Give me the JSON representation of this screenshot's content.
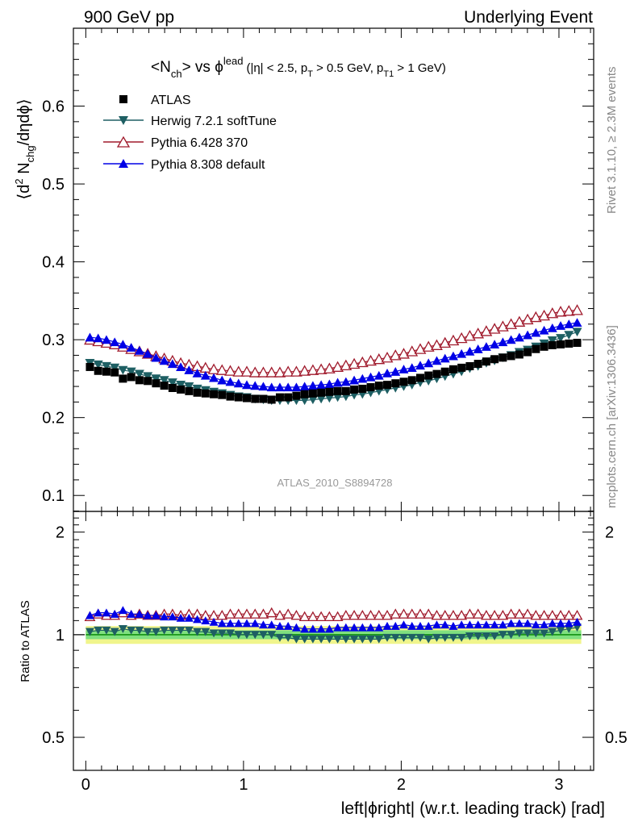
{
  "header": {
    "left": "900 GeV pp",
    "right": "Underlying Event"
  },
  "plot_title": {
    "prefix": "<N",
    "prefix_sub": "ch",
    "mid": "> vs ",
    "phi": "ϕ",
    "phi_sup": "lead",
    "cuts_a": "(|η| < 2.5, p",
    "cuts_a_sub": "T",
    "cuts_b": " > 0.5 GeV, p",
    "cuts_b_sub": "T1",
    "cuts_c": " > 1 GeV)"
  },
  "y_label_top": {
    "a": "⟨d",
    "sup": "2",
    "b": " N",
    "sub": "chg",
    "c": "/dηdϕ⟩"
  },
  "y_label_bottom": "Ratio to ATLAS",
  "x_label": "left|ϕright| (w.r.t. leading track) [rad]",
  "side_text_top": "Rivet 3.1.10, ≥ 2.3M events",
  "side_text_bottom": "mcplots.cern.ch [arXiv:1306.3436]",
  "watermark": "ATLAS_2010_S8894728",
  "colors": {
    "atlas": "#000000",
    "herwig": "#1e5f63",
    "pythia6": "#a01a2c",
    "pythia8": "#0000e6",
    "band_outer": "#f0f58c",
    "band_inner": "#7fe07f",
    "ref_line": "#0a8c0a"
  },
  "chart_data": [
    {
      "type": "scatter",
      "xlim": [
        -0.0785,
        3.2201
      ],
      "ylim": [
        0.0795,
        0.7
      ],
      "x_ticks": [
        "0",
        "1",
        "2",
        "3"
      ],
      "y_ticks": [
        "0.1",
        "0.2",
        "0.3",
        "0.4",
        "0.5",
        "0.6"
      ],
      "legend_position": "top-left",
      "x": [
        0.0262,
        0.0785,
        0.1309,
        0.1833,
        0.2356,
        0.288,
        0.3403,
        0.3927,
        0.4451,
        0.4974,
        0.5498,
        0.6021,
        0.6545,
        0.7069,
        0.7592,
        0.8116,
        0.8639,
        0.9163,
        0.9687,
        1.021,
        1.0734,
        1.1257,
        1.1781,
        1.2305,
        1.2828,
        1.3352,
        1.3875,
        1.4399,
        1.4923,
        1.5446,
        1.597,
        1.6493,
        1.7017,
        1.7541,
        1.8064,
        1.8588,
        1.9111,
        1.9635,
        2.0159,
        2.0682,
        2.1206,
        2.1729,
        2.2253,
        2.2777,
        2.33,
        2.3824,
        2.4347,
        2.4871,
        2.5395,
        2.5918,
        2.6442,
        2.6965,
        2.7489,
        2.8013,
        2.8536,
        2.906,
        2.9583,
        3.0107,
        3.0631,
        3.1154
      ],
      "series": [
        {
          "name": "ATLAS",
          "marker": "square",
          "values": [
            0.265,
            0.26,
            0.259,
            0.258,
            0.25,
            0.252,
            0.248,
            0.247,
            0.244,
            0.241,
            0.238,
            0.236,
            0.234,
            0.232,
            0.231,
            0.23,
            0.229,
            0.227,
            0.226,
            0.225,
            0.224,
            0.224,
            0.223,
            0.226,
            0.226,
            0.228,
            0.23,
            0.231,
            0.232,
            0.233,
            0.234,
            0.234,
            0.236,
            0.237,
            0.239,
            0.241,
            0.242,
            0.244,
            0.246,
            0.248,
            0.251,
            0.254,
            0.256,
            0.259,
            0.262,
            0.264,
            0.266,
            0.269,
            0.272,
            0.275,
            0.277,
            0.279,
            0.281,
            0.284,
            0.288,
            0.291,
            0.293,
            0.294,
            0.295,
            0.296
          ]
        },
        {
          "name": "Herwig 7.2.1 softTune",
          "marker": "triangle-down",
          "values": [
            0.27,
            0.268,
            0.266,
            0.264,
            0.261,
            0.259,
            0.256,
            0.253,
            0.25,
            0.248,
            0.245,
            0.242,
            0.24,
            0.237,
            0.235,
            0.233,
            0.231,
            0.229,
            0.227,
            0.226,
            0.224,
            0.223,
            0.222,
            0.222,
            0.222,
            0.222,
            0.222,
            0.223,
            0.224,
            0.225,
            0.226,
            0.227,
            0.229,
            0.23,
            0.232,
            0.234,
            0.236,
            0.238,
            0.24,
            0.242,
            0.245,
            0.247,
            0.25,
            0.253,
            0.256,
            0.259,
            0.263,
            0.266,
            0.27,
            0.273,
            0.277,
            0.28,
            0.284,
            0.287,
            0.291,
            0.295,
            0.299,
            0.302,
            0.306,
            0.31
          ]
        },
        {
          "name": "Pythia 6.428 370",
          "marker": "triangle-up-open",
          "values": [
            0.3,
            0.298,
            0.296,
            0.294,
            0.291,
            0.288,
            0.285,
            0.282,
            0.279,
            0.276,
            0.273,
            0.27,
            0.268,
            0.266,
            0.264,
            0.262,
            0.261,
            0.26,
            0.259,
            0.259,
            0.258,
            0.258,
            0.258,
            0.258,
            0.259,
            0.259,
            0.26,
            0.261,
            0.262,
            0.263,
            0.265,
            0.267,
            0.269,
            0.271,
            0.273,
            0.275,
            0.277,
            0.28,
            0.282,
            0.285,
            0.288,
            0.291,
            0.293,
            0.296,
            0.299,
            0.302,
            0.305,
            0.308,
            0.311,
            0.314,
            0.317,
            0.32,
            0.323,
            0.326,
            0.329,
            0.331,
            0.334,
            0.336,
            0.337,
            0.338
          ]
        },
        {
          "name": "Pythia 8.308 default",
          "marker": "triangle-up",
          "values": [
            0.303,
            0.302,
            0.3,
            0.297,
            0.294,
            0.29,
            0.286,
            0.282,
            0.277,
            0.273,
            0.269,
            0.265,
            0.261,
            0.257,
            0.254,
            0.251,
            0.248,
            0.246,
            0.244,
            0.242,
            0.241,
            0.24,
            0.239,
            0.239,
            0.239,
            0.239,
            0.24,
            0.241,
            0.242,
            0.243,
            0.245,
            0.246,
            0.248,
            0.25,
            0.252,
            0.254,
            0.257,
            0.259,
            0.262,
            0.264,
            0.267,
            0.27,
            0.273,
            0.276,
            0.279,
            0.282,
            0.285,
            0.288,
            0.291,
            0.294,
            0.297,
            0.3,
            0.303,
            0.306,
            0.309,
            0.312,
            0.315,
            0.318,
            0.32,
            0.322
          ]
        }
      ]
    },
    {
      "type": "scatter",
      "xlim": [
        -0.0785,
        3.2201
      ],
      "ylim": [
        0.4,
        2.3
      ],
      "y_scale": "log",
      "x_ticks": [
        "0",
        "1",
        "2",
        "3"
      ],
      "y_ticks": [
        "0.5",
        "1",
        "2"
      ],
      "band": {
        "inner": [
          0.97,
          1.03
        ],
        "outer": [
          0.94,
          1.06
        ]
      },
      "ratio_series": [
        {
          "name": "Herwig 7.2.1 softTune",
          "marker": "triangle-down",
          "values": [
            1.02,
            1.03,
            1.03,
            1.02,
            1.04,
            1.03,
            1.03,
            1.02,
            1.02,
            1.03,
            1.03,
            1.03,
            1.03,
            1.02,
            1.02,
            1.01,
            1.01,
            1.01,
            1.0,
            1.0,
            1.0,
            1.0,
            1.0,
            0.98,
            0.98,
            0.97,
            0.97,
            0.97,
            0.97,
            0.97,
            0.97,
            0.97,
            0.97,
            0.97,
            0.97,
            0.97,
            0.98,
            0.98,
            0.98,
            0.98,
            0.98,
            0.97,
            0.98,
            0.98,
            0.98,
            0.98,
            0.99,
            0.99,
            0.99,
            0.99,
            1.0,
            1.0,
            1.01,
            1.01,
            1.01,
            1.01,
            1.02,
            1.03,
            1.04,
            1.05
          ]
        },
        {
          "name": "Pythia 6.428 370",
          "marker": "triangle-up-open",
          "values": [
            1.13,
            1.15,
            1.14,
            1.14,
            1.16,
            1.14,
            1.15,
            1.14,
            1.14,
            1.15,
            1.15,
            1.14,
            1.15,
            1.15,
            1.14,
            1.14,
            1.14,
            1.15,
            1.15,
            1.15,
            1.15,
            1.15,
            1.16,
            1.14,
            1.15,
            1.14,
            1.13,
            1.13,
            1.13,
            1.13,
            1.13,
            1.14,
            1.14,
            1.14,
            1.14,
            1.14,
            1.14,
            1.15,
            1.15,
            1.15,
            1.15,
            1.15,
            1.14,
            1.14,
            1.14,
            1.14,
            1.15,
            1.15,
            1.14,
            1.14,
            1.14,
            1.15,
            1.15,
            1.15,
            1.14,
            1.14,
            1.14,
            1.14,
            1.14,
            1.14
          ]
        },
        {
          "name": "Pythia 8.308 default",
          "marker": "triangle-up",
          "values": [
            1.14,
            1.16,
            1.16,
            1.15,
            1.18,
            1.15,
            1.15,
            1.14,
            1.14,
            1.13,
            1.13,
            1.12,
            1.12,
            1.11,
            1.1,
            1.09,
            1.08,
            1.08,
            1.08,
            1.08,
            1.08,
            1.07,
            1.07,
            1.06,
            1.06,
            1.05,
            1.04,
            1.04,
            1.04,
            1.04,
            1.05,
            1.05,
            1.05,
            1.05,
            1.05,
            1.05,
            1.06,
            1.06,
            1.07,
            1.06,
            1.06,
            1.06,
            1.07,
            1.07,
            1.06,
            1.07,
            1.07,
            1.07,
            1.07,
            1.07,
            1.07,
            1.08,
            1.08,
            1.08,
            1.07,
            1.07,
            1.08,
            1.08,
            1.08,
            1.09
          ]
        }
      ]
    }
  ]
}
